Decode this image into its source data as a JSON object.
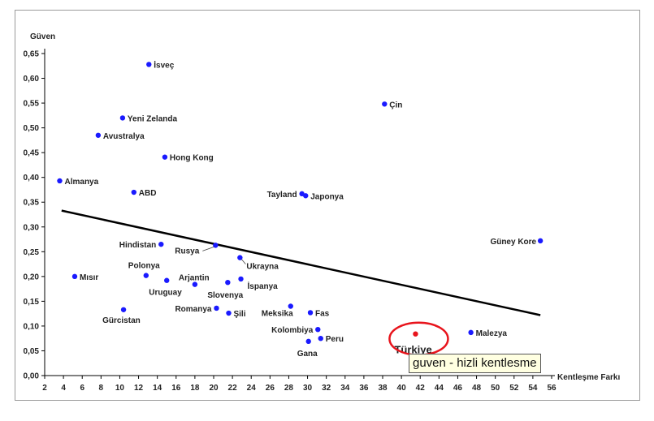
{
  "chart_data": {
    "type": "scatter",
    "ylabel": "Güven",
    "xlabel": "Kentleşme Farkı",
    "xlim": [
      2,
      56
    ],
    "ylim": [
      0,
      0.65
    ],
    "x_ticks": [
      2,
      4,
      6,
      8,
      10,
      12,
      14,
      16,
      18,
      20,
      22,
      24,
      26,
      28,
      30,
      32,
      34,
      36,
      38,
      40,
      42,
      44,
      46,
      48,
      50,
      52,
      54,
      56
    ],
    "y_ticks": [
      "0,00",
      "0,05",
      "0,10",
      "0,15",
      "0,20",
      "0,25",
      "0,30",
      "0,35",
      "0,40",
      "0,45",
      "0,50",
      "0,55",
      "0,60",
      "0,65"
    ],
    "points": [
      {
        "label": "İsveç",
        "x": 13.1,
        "y": 0.628
      },
      {
        "label": "Yeni Zelanda",
        "x": 10.3,
        "y": 0.52
      },
      {
        "label": "Avustralya",
        "x": 7.7,
        "y": 0.485
      },
      {
        "label": "Hong Kong",
        "x": 14.8,
        "y": 0.441
      },
      {
        "label": "Almanya",
        "x": 3.6,
        "y": 0.393
      },
      {
        "label": "ABD",
        "x": 11.5,
        "y": 0.37
      },
      {
        "label": "Çin",
        "x": 38.2,
        "y": 0.548
      },
      {
        "label": "Tayland",
        "x": 29.4,
        "y": 0.367
      },
      {
        "label": "Japonya",
        "x": 29.8,
        "y": 0.363
      },
      {
        "label": "Güney Kore",
        "x": 54.8,
        "y": 0.272
      },
      {
        "label": "Hindistan",
        "x": 14.4,
        "y": 0.265
      },
      {
        "label": "Rusya",
        "x": 20.2,
        "y": 0.263
      },
      {
        "label": "Ukrayna",
        "x": 22.8,
        "y": 0.238
      },
      {
        "label": "Mısır",
        "x": 5.2,
        "y": 0.2
      },
      {
        "label": "Polonya",
        "x": 12.8,
        "y": 0.202
      },
      {
        "label": "Uruguay",
        "x": 15.0,
        "y": 0.192
      },
      {
        "label": "Arjantin",
        "x": 18.0,
        "y": 0.184
      },
      {
        "label": "Slovenya",
        "x": 21.5,
        "y": 0.188
      },
      {
        "label": "İspanya",
        "x": 22.9,
        "y": 0.195
      },
      {
        "label": "Gürcistan",
        "x": 10.4,
        "y": 0.133
      },
      {
        "label": "Romanya",
        "x": 20.3,
        "y": 0.136
      },
      {
        "label": "Şili",
        "x": 21.6,
        "y": 0.126
      },
      {
        "label": "Meksika",
        "x": 28.2,
        "y": 0.14
      },
      {
        "label": "Fas",
        "x": 30.3,
        "y": 0.127
      },
      {
        "label": "Kolombiya",
        "x": 31.1,
        "y": 0.093
      },
      {
        "label": "Peru",
        "x": 31.4,
        "y": 0.075
      },
      {
        "label": "Gana",
        "x": 30.1,
        "y": 0.069
      },
      {
        "label": "Malezya",
        "x": 47.4,
        "y": 0.087
      },
      {
        "label": "Türkiye",
        "x": 41.5,
        "y": 0.084,
        "highlight": true
      }
    ],
    "trendline": {
      "x": [
        3.8,
        54.8
      ],
      "y": [
        0.333,
        0.122
      ]
    },
    "grid": false,
    "legend": "none"
  },
  "tooltip": "guven - hizli kentlesme",
  "colors": {
    "point": "#1a1aff",
    "highlight": "#e8141c",
    "line": "#000000"
  }
}
